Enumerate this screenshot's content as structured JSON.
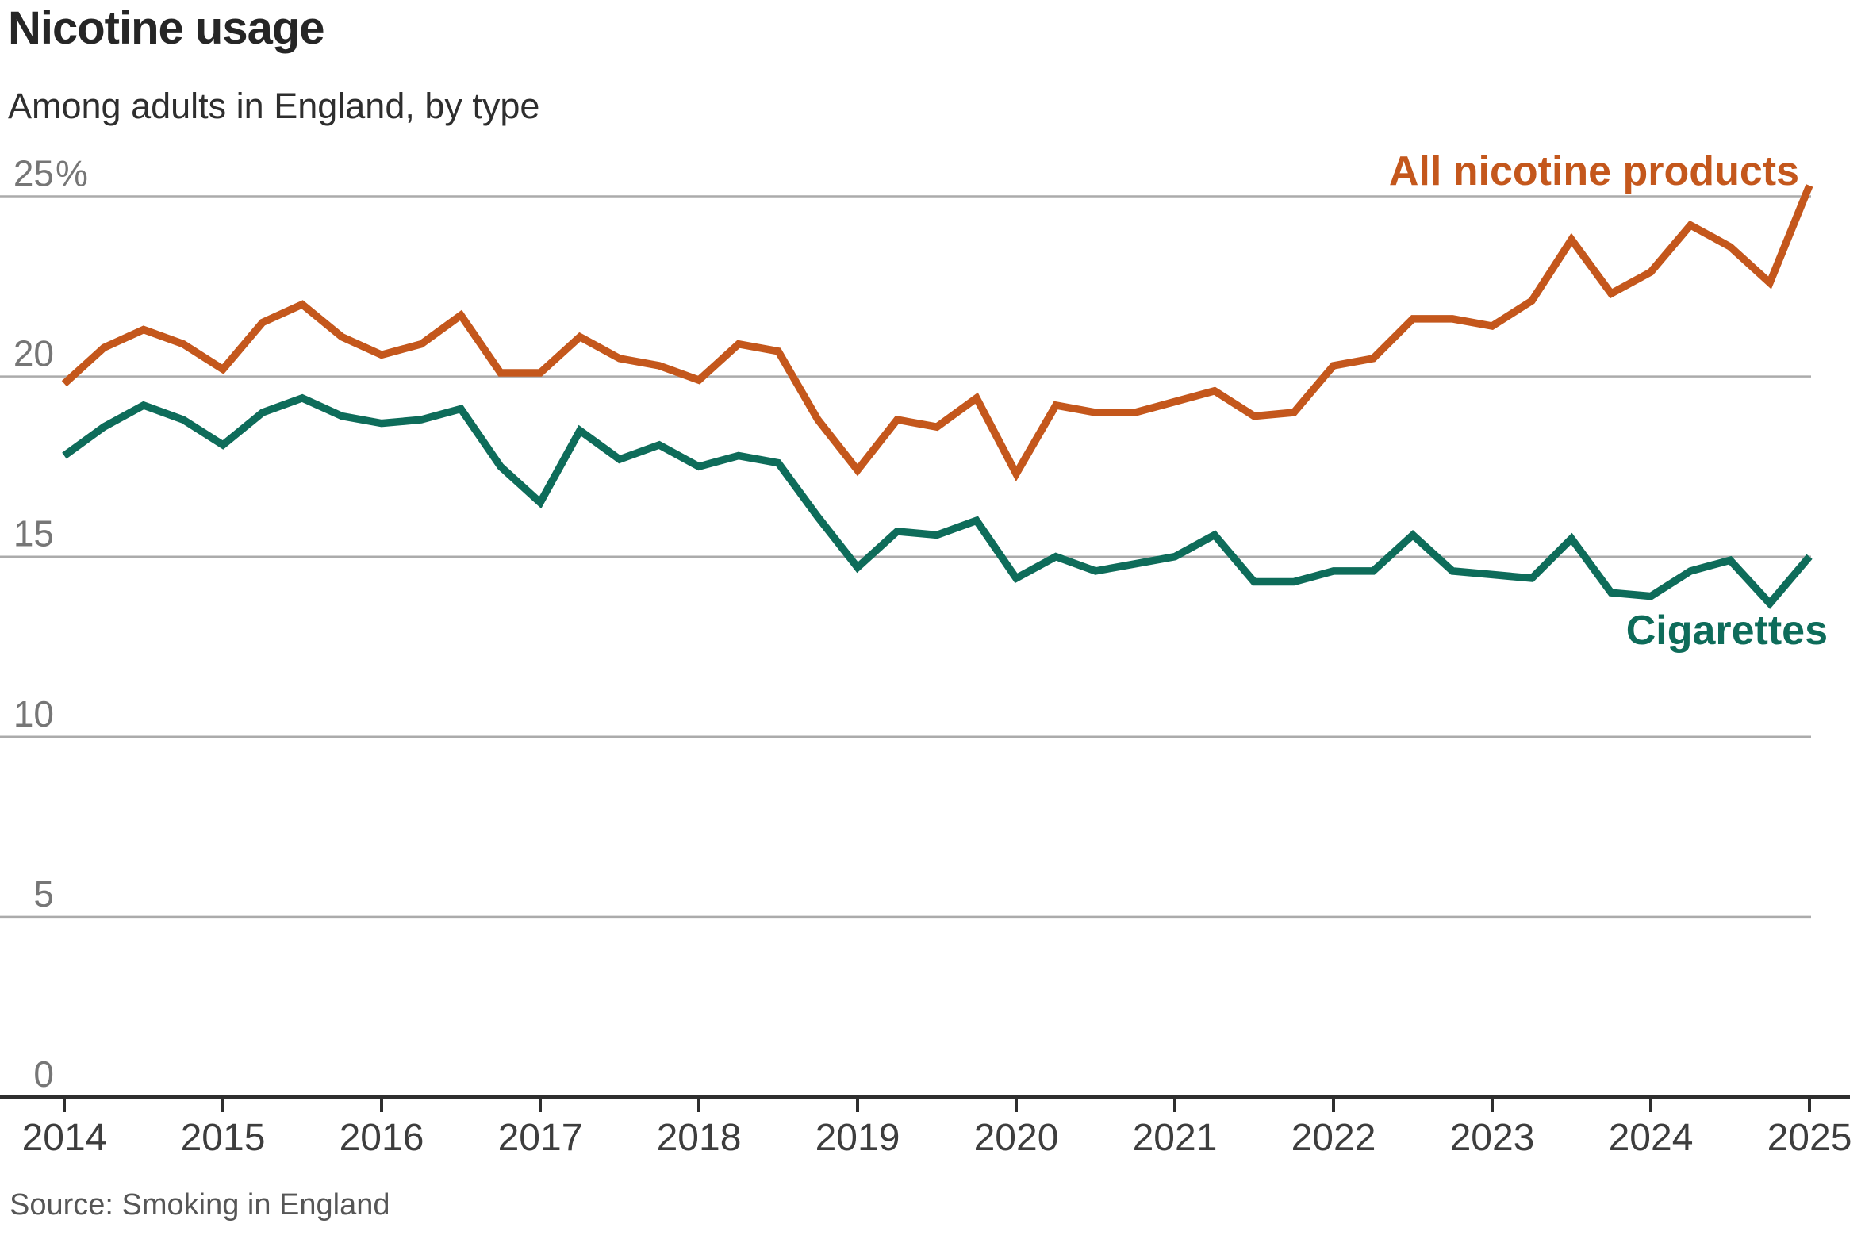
{
  "header": {
    "title": "Nicotine usage",
    "subtitle": "Among adults in England, by type"
  },
  "footer": {
    "source": "Source: Smoking in England"
  },
  "colors": {
    "all_nicotine": "#C4571C",
    "cigarettes": "#0E6C5A",
    "gridline": "#ABABAB",
    "axis": "#2e2e2e",
    "y_tick_text": "#767676",
    "x_tick_text": "#3d3d3d"
  },
  "chart_data": {
    "type": "line",
    "title": "Nicotine usage",
    "subtitle": "Among adults in England, by type",
    "x_start": 2014,
    "x_step": 0.25,
    "x_tick_labels": [
      "2014",
      "2015",
      "2016",
      "2017",
      "2018",
      "2019",
      "2020",
      "2021",
      "2022",
      "2023",
      "2024",
      "2025"
    ],
    "y_ticks": [
      {
        "value": 25,
        "label": "25",
        "suffix": "%"
      },
      {
        "value": 20,
        "label": "20",
        "suffix": ""
      },
      {
        "value": 15,
        "label": "15",
        "suffix": ""
      },
      {
        "value": 10,
        "label": "10",
        "suffix": ""
      },
      {
        "value": 5,
        "label": "5",
        "suffix": ""
      },
      {
        "value": 0,
        "label": "0",
        "suffix": ""
      }
    ],
    "ylim": [
      0,
      26.5
    ],
    "xlabel": "",
    "ylabel": "",
    "grid": "horizontal",
    "legend_position": "inline-end-labels",
    "series": [
      {
        "name": "All nicotine products",
        "color": "#C4571C",
        "values": [
          19.8,
          20.8,
          21.3,
          20.9,
          20.2,
          21.5,
          22.0,
          21.1,
          20.6,
          20.9,
          21.7,
          20.1,
          20.1,
          21.1,
          20.5,
          20.3,
          19.9,
          20.9,
          20.7,
          18.8,
          17.4,
          18.8,
          18.6,
          19.4,
          17.3,
          19.2,
          19.0,
          19.0,
          19.3,
          19.6,
          18.9,
          19.0,
          20.3,
          20.5,
          21.6,
          21.6,
          21.4,
          22.1,
          23.8,
          22.3,
          22.9,
          24.2,
          23.6,
          22.6,
          25.3
        ]
      },
      {
        "name": "Cigarettes",
        "color": "#0E6C5A",
        "values": [
          17.8,
          18.6,
          19.2,
          18.8,
          18.1,
          19.0,
          19.4,
          18.9,
          18.7,
          18.8,
          19.1,
          17.5,
          16.5,
          18.5,
          17.7,
          18.1,
          17.5,
          17.8,
          17.6,
          16.1,
          14.7,
          15.7,
          15.6,
          16.0,
          14.4,
          15.0,
          14.6,
          14.8,
          15.0,
          15.6,
          14.3,
          14.3,
          14.6,
          14.6,
          15.6,
          14.6,
          14.5,
          14.4,
          15.5,
          14.0,
          13.9,
          14.6,
          14.9,
          13.7,
          15.0
        ]
      }
    ]
  }
}
